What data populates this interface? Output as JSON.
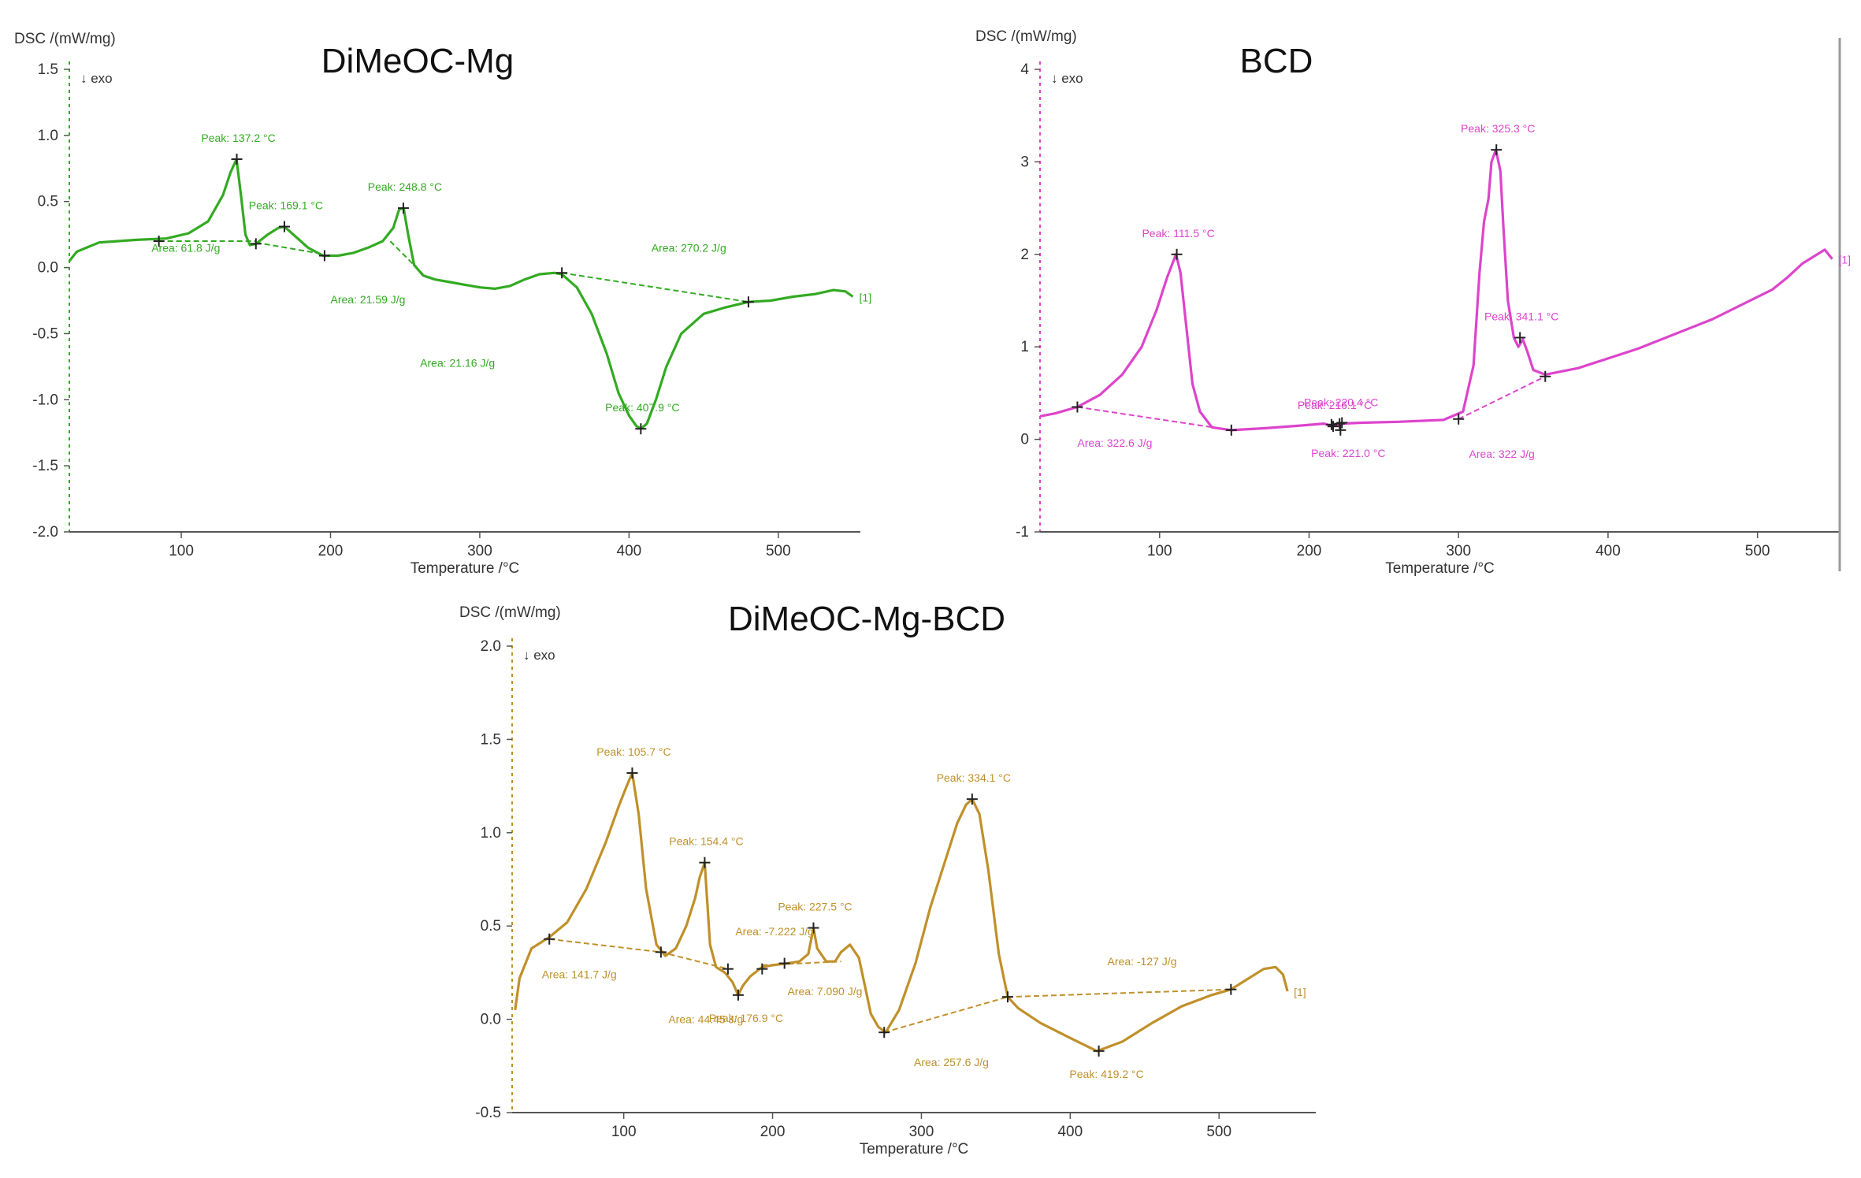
{
  "chart_data": [
    {
      "type": "line",
      "title": "DiMeOC-Mg",
      "ylabel": "DSC /(mW/mg)",
      "xlabel": "Temperature /°C",
      "exo_label": "↓ exo",
      "end_label": "[1]",
      "color": "#33aa22",
      "xlim": [
        25,
        555
      ],
      "ylim": [
        -2.0,
        1.5
      ],
      "xticks": [
        "100",
        "200",
        "300",
        "400",
        "500"
      ],
      "xtick_values": [
        100,
        200,
        300,
        400,
        500
      ],
      "yticks": [
        "1.5",
        "1.0",
        "0.5",
        "0.0",
        "-0.5",
        "-1.0",
        "-1.5",
        "-2.0"
      ],
      "ytick_values": [
        1.5,
        1.0,
        0.5,
        0.0,
        -0.5,
        -1.0,
        -1.5,
        -2.0
      ],
      "series": [
        {
          "x": [
            25,
            30,
            45,
            70,
            90,
            105,
            118,
            128,
            133,
            137,
            140,
            143,
            146,
            150,
            158,
            165,
            169,
            175,
            185,
            195,
            205,
            215,
            225,
            235,
            242,
            246,
            249,
            252,
            256,
            262,
            270,
            280,
            290,
            300,
            310,
            320,
            330,
            340,
            350,
            355,
            365,
            375,
            385,
            393,
            400,
            405,
            408,
            412,
            418,
            425,
            435,
            450,
            465,
            480,
            495,
            510,
            525,
            537,
            545,
            550
          ],
          "y": [
            0.05,
            0.12,
            0.19,
            0.21,
            0.22,
            0.26,
            0.35,
            0.55,
            0.72,
            0.82,
            0.55,
            0.25,
            0.17,
            0.18,
            0.25,
            0.3,
            0.31,
            0.25,
            0.15,
            0.09,
            0.09,
            0.11,
            0.15,
            0.2,
            0.3,
            0.44,
            0.45,
            0.25,
            0.02,
            -0.06,
            -0.09,
            -0.11,
            -0.13,
            -0.15,
            -0.16,
            -0.14,
            -0.09,
            -0.05,
            -0.04,
            -0.05,
            -0.15,
            -0.35,
            -0.65,
            -0.95,
            -1.12,
            -1.2,
            -1.22,
            -1.18,
            -1.0,
            -0.75,
            -0.5,
            -0.35,
            -0.3,
            -0.26,
            -0.25,
            -0.22,
            -0.2,
            -0.17,
            -0.18,
            -0.22
          ]
        }
      ],
      "peaks": [
        {
          "x": 137.2,
          "y": 0.82,
          "label": "Peak: 137.2 °C"
        },
        {
          "x": 169.1,
          "y": 0.31,
          "label": "Peak: 169.1 °C"
        },
        {
          "x": 248.8,
          "y": 0.45,
          "label": "Peak: 248.8 °C"
        },
        {
          "x": 407.9,
          "y": -1.22,
          "label": "Peak: 407.9 °C"
        }
      ],
      "baselines": [
        {
          "x": [
            85,
            150
          ],
          "y": [
            0.2,
            0.2
          ]
        },
        {
          "x": [
            150,
            196
          ],
          "y": [
            0.19,
            0.1
          ]
        },
        {
          "x": [
            240,
            262
          ],
          "y": [
            0.2,
            -0.05
          ]
        },
        {
          "x": [
            355,
            480
          ],
          "y": [
            -0.04,
            -0.26
          ]
        }
      ],
      "markers": [
        {
          "x": 85,
          "y": 0.2
        },
        {
          "x": 150,
          "y": 0.18
        },
        {
          "x": 196,
          "y": 0.09
        },
        {
          "x": 355,
          "y": -0.04
        },
        {
          "x": 480,
          "y": -0.26
        }
      ],
      "areas": [
        {
          "x": 80,
          "y": 0.12,
          "label": "Area: 61.8 J/g"
        },
        {
          "x": 200,
          "y": -0.27,
          "label": "Area: 21.59 J/g"
        },
        {
          "x": 260,
          "y": -0.75,
          "label": "Area: 21.16 J/g"
        },
        {
          "x": 415,
          "y": 0.12,
          "label": "Area: 270.2 J/g"
        }
      ]
    },
    {
      "type": "line",
      "title": "BCD",
      "ylabel": "DSC /(mW/mg)",
      "xlabel": "Temperature /°C",
      "exo_label": "↓ exo",
      "end_label": "[1]",
      "color": "#dd44cc",
      "xlim": [
        20,
        555
      ],
      "ylim": [
        -1,
        4
      ],
      "xticks": [
        "100",
        "200",
        "300",
        "400",
        "500"
      ],
      "xtick_values": [
        100,
        200,
        300,
        400,
        500
      ],
      "yticks": [
        "4",
        "3",
        "2",
        "1",
        "0",
        "-1"
      ],
      "ytick_values": [
        4,
        3,
        2,
        1,
        0,
        -1
      ],
      "series": [
        {
          "x": [
            20,
            30,
            45,
            60,
            75,
            88,
            98,
            105,
            111,
            114,
            118,
            122,
            127,
            135,
            148,
            170,
            195,
            210,
            216,
            222,
            235,
            260,
            290,
            303,
            310,
            314,
            317,
            320,
            322,
            325,
            328,
            330,
            333,
            337,
            340,
            343,
            346,
            350,
            358,
            380,
            420,
            470,
            510,
            520,
            530,
            545,
            550
          ],
          "y": [
            0.25,
            0.28,
            0.35,
            0.48,
            0.7,
            1.0,
            1.4,
            1.75,
            2.0,
            1.8,
            1.2,
            0.6,
            0.3,
            0.13,
            0.1,
            0.12,
            0.15,
            0.17,
            0.14,
            0.17,
            0.18,
            0.19,
            0.21,
            0.3,
            0.8,
            1.8,
            2.35,
            2.6,
            3.0,
            3.13,
            2.9,
            2.3,
            1.5,
            1.1,
            1.0,
            1.08,
            0.95,
            0.75,
            0.7,
            0.77,
            0.98,
            1.3,
            1.62,
            1.75,
            1.9,
            2.05,
            1.95
          ]
        }
      ],
      "peaks": [
        {
          "x": 111.5,
          "y": 2.0,
          "label": "Peak: 111.5 °C"
        },
        {
          "x": 216.1,
          "y": 0.14,
          "label": "Peak: 216.1 °C"
        },
        {
          "x": 220.4,
          "y": 0.17,
          "label": "Peak: 220.4 °C"
        },
        {
          "x": 325.3,
          "y": 3.13,
          "label": "Peak: 325.3 °C"
        },
        {
          "x": 341.1,
          "y": 1.1,
          "label": "Peak: 341.1 °C"
        }
      ],
      "baselines": [
        {
          "x": [
            45,
            148
          ],
          "y": [
            0.35,
            0.1
          ]
        },
        {
          "x": [
            300,
            358
          ],
          "y": [
            0.22,
            0.68
          ]
        }
      ],
      "markers": [
        {
          "x": 45,
          "y": 0.35
        },
        {
          "x": 148,
          "y": 0.1
        },
        {
          "x": 215,
          "y": 0.16
        },
        {
          "x": 222,
          "y": 0.18
        },
        {
          "x": 300,
          "y": 0.22
        },
        {
          "x": 358,
          "y": 0.68
        }
      ],
      "troughs": [
        {
          "x": 221.0,
          "y": 0.1,
          "label": "Peak: 221.0 °C"
        }
      ],
      "areas": [
        {
          "x": 45,
          "y": -0.08,
          "label": "Area: 322.6 J/g"
        },
        {
          "x": 307,
          "y": -0.2,
          "label": "Area: 322 J/g"
        }
      ]
    },
    {
      "type": "line",
      "title": "DiMeOC-Mg-BCD",
      "ylabel": "DSC /(mW/mg)",
      "xlabel": "Temperature /°C",
      "exo_label": "↓ exo",
      "end_label": "[1]",
      "color": "#c0902a",
      "xlim": [
        25,
        565
      ],
      "ylim": [
        -0.5,
        2.0
      ],
      "xticks": [
        "100",
        "200",
        "300",
        "400",
        "500"
      ],
      "xtick_values": [
        100,
        200,
        300,
        400,
        500
      ],
      "yticks": [
        "2.0",
        "1.5",
        "1.0",
        "0.5",
        "0.0",
        "-0.5"
      ],
      "ytick_values": [
        2.0,
        1.5,
        1.0,
        0.5,
        0.0,
        -0.5
      ],
      "series": [
        {
          "x": [
            27,
            30,
            38,
            50,
            62,
            75,
            88,
            97,
            102,
            105.7,
            110,
            115,
            122,
            128,
            135,
            142,
            148,
            151,
            154.4,
            158,
            162,
            168,
            173,
            176.9,
            180,
            185,
            193,
            200,
            210,
            218,
            224,
            227.5,
            230,
            236,
            242,
            246,
            252,
            258,
            262,
            266,
            271,
            276,
            285,
            296,
            306,
            316,
            324,
            330,
            334.1,
            339,
            345,
            352,
            358,
            365,
            380,
            400,
            418,
            435,
            455,
            475,
            495,
            508,
            520,
            530,
            538,
            543,
            546
          ],
          "y": [
            0.05,
            0.22,
            0.38,
            0.44,
            0.52,
            0.7,
            0.95,
            1.15,
            1.25,
            1.32,
            1.1,
            0.7,
            0.4,
            0.34,
            0.38,
            0.5,
            0.65,
            0.76,
            0.84,
            0.4,
            0.28,
            0.25,
            0.2,
            0.13,
            0.18,
            0.23,
            0.28,
            0.29,
            0.3,
            0.31,
            0.35,
            0.49,
            0.38,
            0.31,
            0.31,
            0.36,
            0.4,
            0.33,
            0.18,
            0.03,
            -0.04,
            -0.07,
            0.05,
            0.3,
            0.6,
            0.85,
            1.05,
            1.15,
            1.18,
            1.1,
            0.8,
            0.35,
            0.12,
            0.06,
            -0.02,
            -0.1,
            -0.17,
            -0.12,
            -0.02,
            0.07,
            0.13,
            0.16,
            0.22,
            0.27,
            0.28,
            0.24,
            0.15
          ]
        }
      ],
      "peaks": [
        {
          "x": 105.7,
          "y": 1.32,
          "label": "Peak: 105.7 °C"
        },
        {
          "x": 154.4,
          "y": 0.84,
          "label": "Peak: 154.4 °C"
        },
        {
          "x": 227.5,
          "y": 0.49,
          "label": "Peak: 227.5 °C"
        },
        {
          "x": 334.1,
          "y": 1.18,
          "label": "Peak: 334.1 °C"
        }
      ],
      "troughs": [
        {
          "x": 176.9,
          "y": 0.13,
          "label": "Peak: 176.9 °C"
        },
        {
          "x": 419.2,
          "y": -0.17,
          "label": "Peak: 419.2 °C"
        }
      ],
      "baselines": [
        {
          "x": [
            50,
            125
          ],
          "y": [
            0.43,
            0.36
          ]
        },
        {
          "x": [
            125,
            170
          ],
          "y": [
            0.36,
            0.27
          ]
        },
        {
          "x": [
            193,
            246
          ],
          "y": [
            0.29,
            0.31
          ]
        },
        {
          "x": [
            275,
            358
          ],
          "y": [
            -0.07,
            0.12
          ]
        },
        {
          "x": [
            358,
            508
          ],
          "y": [
            0.12,
            0.16
          ]
        }
      ],
      "markers": [
        {
          "x": 50,
          "y": 0.43
        },
        {
          "x": 125,
          "y": 0.36
        },
        {
          "x": 170,
          "y": 0.27
        },
        {
          "x": 193,
          "y": 0.27
        },
        {
          "x": 208,
          "y": 0.3
        },
        {
          "x": 275,
          "y": -0.07
        },
        {
          "x": 358,
          "y": 0.12
        },
        {
          "x": 508,
          "y": 0.16
        }
      ],
      "areas": [
        {
          "x": 45,
          "y": 0.22,
          "label": "Area: 141.7 J/g"
        },
        {
          "x": 130,
          "y": -0.02,
          "label": "Area: 44.45 J/g"
        },
        {
          "x": 175,
          "y": 0.45,
          "label": "Area: -7.222 J/g"
        },
        {
          "x": 210,
          "y": 0.13,
          "label": "Area: 7.090 J/g"
        },
        {
          "x": 295,
          "y": -0.25,
          "label": "Area: 257.6 J/g"
        },
        {
          "x": 425,
          "y": 0.29,
          "label": "Area: -127 J/g"
        }
      ]
    }
  ]
}
